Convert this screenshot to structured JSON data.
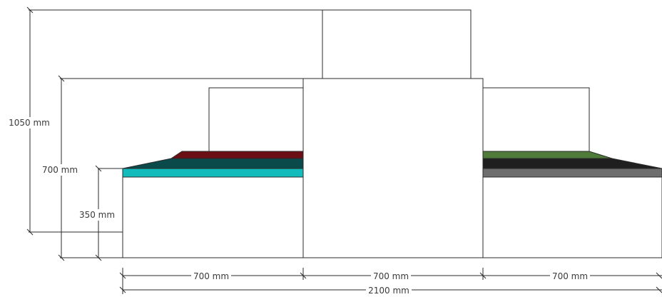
{
  "dimensions": {
    "total_height": "1050 mm",
    "height_700": "700 mm",
    "height_350": "350 mm",
    "width_left": "700 mm",
    "width_middle": "700 mm",
    "width_right": "700 mm",
    "total_width": "2100 mm"
  },
  "colors": {
    "left_top_layer": "#6b0f14",
    "left_middle_layer": "#0b4a4a",
    "left_bottom_layer": "#12bcbc",
    "right_top_layer": "#4f7a3a",
    "right_middle_layer": "#1f1f1f",
    "right_bottom_layer": "#6e6e6e",
    "outline": "#2b2b2b"
  }
}
